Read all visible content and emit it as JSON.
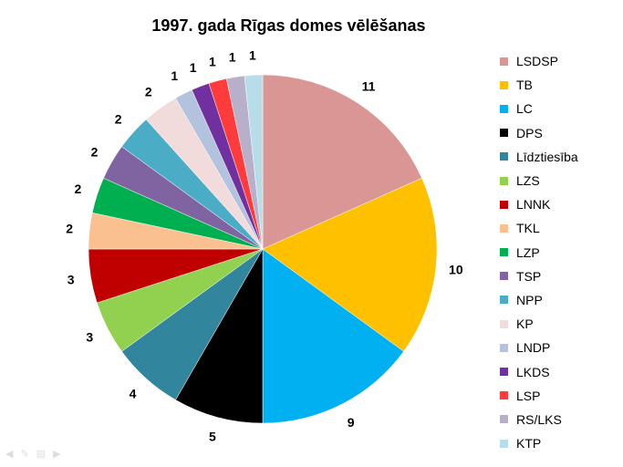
{
  "chart_data": {
    "type": "pie",
    "title": "1997. gada Rīgas domes vēlēšanas",
    "start": "12 o'clock, clockwise",
    "legend_position": "right",
    "slices": [
      {
        "label": "LSDSP",
        "value": 11,
        "color": "#d99694"
      },
      {
        "label": "TB",
        "value": 10,
        "color": "#ffc000"
      },
      {
        "label": "LC",
        "value": 9,
        "color": "#00b0f0"
      },
      {
        "label": "DPS",
        "value": 5,
        "color": "#000000"
      },
      {
        "label": "Līdztiesība",
        "value": 4,
        "color": "#31859c"
      },
      {
        "label": "LZS",
        "value": 3,
        "color": "#92d050"
      },
      {
        "label": "LNNK",
        "value": 3,
        "color": "#c00000"
      },
      {
        "label": "TKL",
        "value": 2,
        "color": "#fac090"
      },
      {
        "label": "LZP",
        "value": 2,
        "color": "#00b050"
      },
      {
        "label": "TSP",
        "value": 2,
        "color": "#8064a2"
      },
      {
        "label": "NPP",
        "value": 2,
        "color": "#4bacc6"
      },
      {
        "label": "KP",
        "value": 2,
        "color": "#f2dcdb"
      },
      {
        "label": "LNDP",
        "value": 1,
        "color": "#b3c2dd"
      },
      {
        "label": "LKDS",
        "value": 1,
        "color": "#7030a0"
      },
      {
        "label": "LSP",
        "value": 1,
        "color": "#ff3b3b"
      },
      {
        "label": "RS/LKS",
        "value": 1,
        "color": "#b8b0cb"
      },
      {
        "label": "KTP",
        "value": 1,
        "color": "#b7dde8"
      }
    ]
  }
}
